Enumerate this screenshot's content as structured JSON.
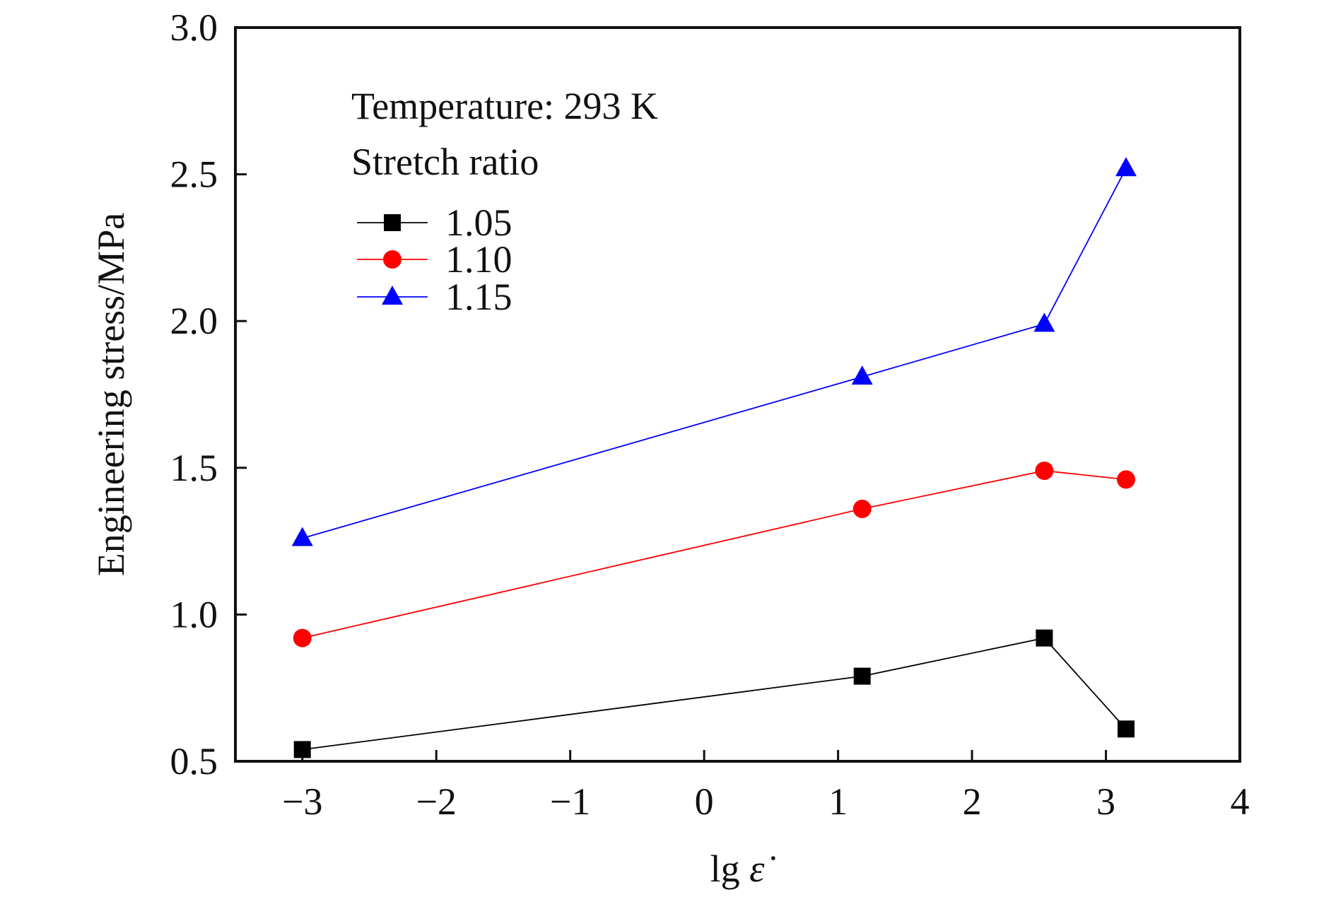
{
  "chart_data": {
    "type": "line",
    "title": "",
    "xlabel_prefix": "lg ",
    "xlabel_symbol": "ε̇",
    "ylabel": "Engineering stress/MPa",
    "xlim": [
      -3.5,
      4
    ],
    "ylim": [
      0.5,
      3.0
    ],
    "xticks": [
      -3,
      -2,
      -1,
      0,
      1,
      2,
      3,
      4
    ],
    "xtick_labels": [
      "−3",
      "−2",
      "−1",
      "0",
      "1",
      "2",
      "3",
      "4"
    ],
    "yticks": [
      0.5,
      1.0,
      1.5,
      2.0,
      2.5,
      3.0
    ],
    "ytick_labels": [
      "0.5",
      "1.0",
      "1.5",
      "2.0",
      "2.5",
      "3.0"
    ],
    "grid": false,
    "legend_position": "top-left",
    "annotation": "Temperature: 293 K",
    "legend_title": "Stretch ratio",
    "x": [
      -3,
      1.18,
      2.54,
      3.15
    ],
    "series": [
      {
        "name": "1.05",
        "marker": "square",
        "color": "#000000",
        "values": [
          0.54,
          0.79,
          0.92,
          0.61
        ]
      },
      {
        "name": "1.10",
        "marker": "circle",
        "color": "#ff0000",
        "values": [
          0.92,
          1.36,
          1.49,
          1.46
        ]
      },
      {
        "name": "1.15",
        "marker": "triangle",
        "color": "#0000ff",
        "values": [
          1.26,
          1.81,
          1.99,
          2.52
        ]
      }
    ]
  },
  "colors": {
    "axis": "#111111",
    "series_105": "#000000",
    "series_110": "#ff0000",
    "series_115": "#0000ff"
  }
}
